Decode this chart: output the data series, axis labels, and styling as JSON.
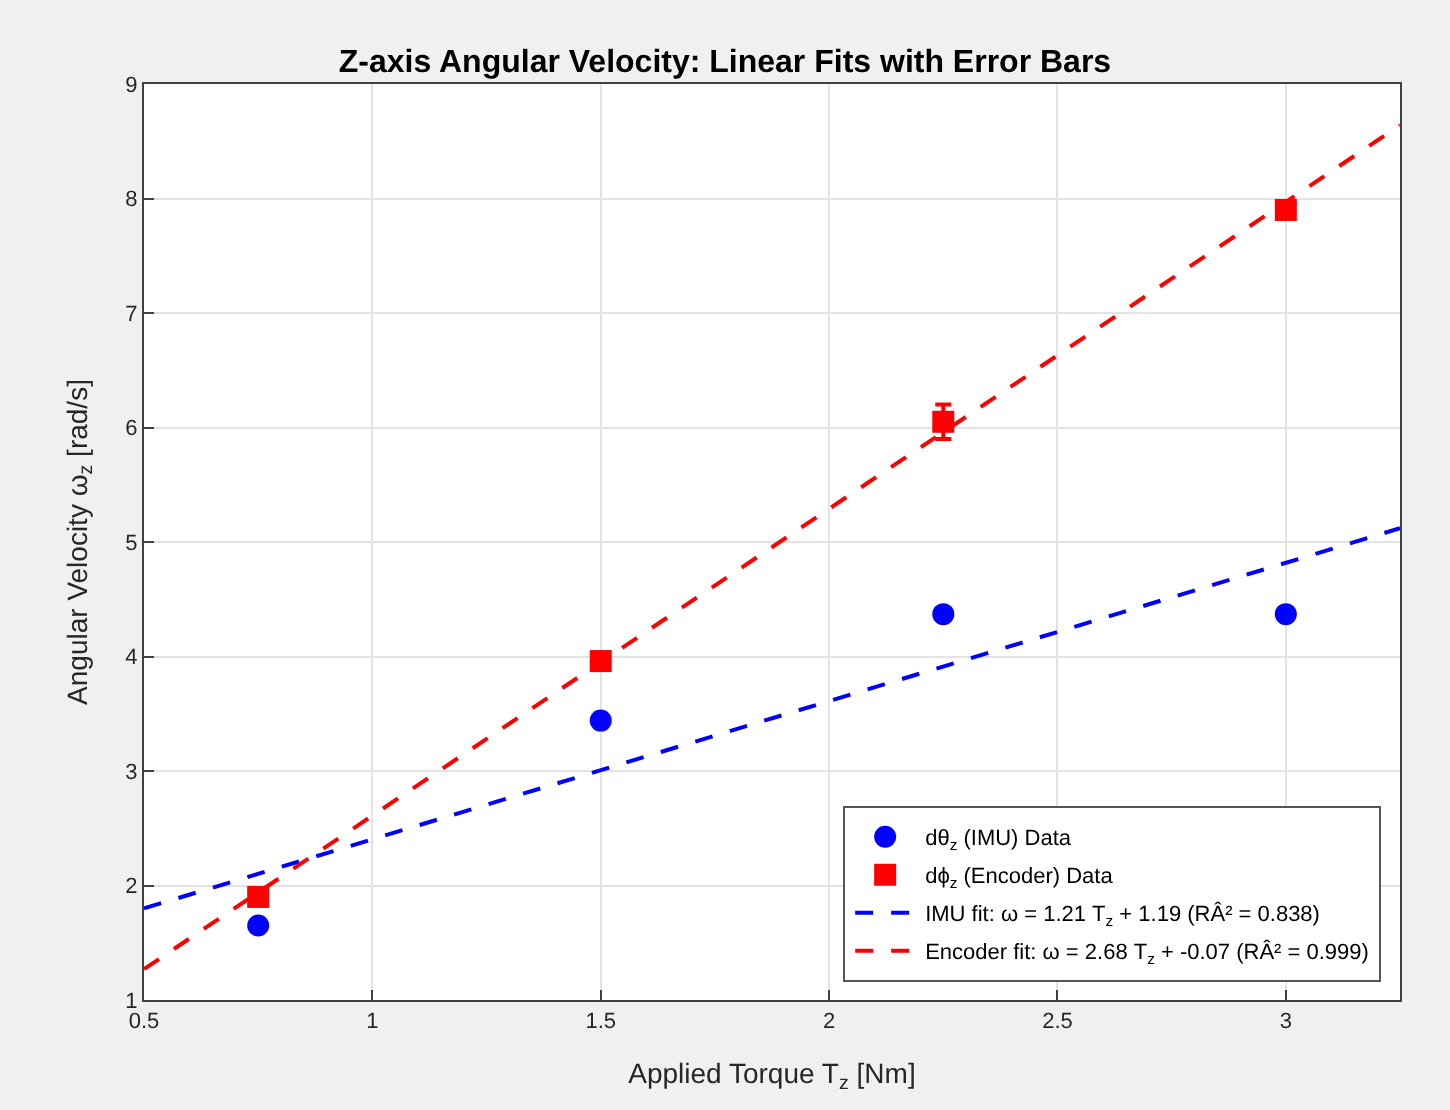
{
  "chart_data": {
    "type": "scatter",
    "title": "Z-axis Angular Velocity: Linear Fits with Error Bars",
    "xlabel": "Applied Torque T$_{z}$ [Nm]",
    "ylabel": "Angular Velocity ω$_{z}$ [rad/s]",
    "xlim": [
      0.5,
      3.25
    ],
    "xticks": [
      0.5,
      1,
      1.5,
      2,
      2.5,
      3
    ],
    "ylim": [
      1,
      9
    ],
    "yticks": [
      1,
      2,
      3,
      4,
      5,
      6,
      7,
      8,
      9
    ],
    "grid": true,
    "legend": "bottom right",
    "series": [
      {
        "name": "dθ$_{z}$ (IMU) Data",
        "color": "#0000ff",
        "marker": "circle",
        "x": [
          0.75,
          1.5,
          2.25,
          3
        ],
        "values": [
          1.65,
          3.44,
          4.37,
          4.37
        ]
      },
      {
        "name": "dϕ$_{z}$ (Encoder) Data",
        "color": "#ff0000",
        "marker": "square",
        "x": [
          0.75,
          1.5,
          2.25,
          3
        ],
        "values": [
          1.9,
          3.96,
          6.05,
          7.9
        ],
        "errors": [
          null,
          null,
          0.15,
          null
        ]
      },
      {
        "name": "IMU fit: ω = 1.21 T$_{z}$ + 1.19 (RÂ² = 0.838)",
        "color": "#0000ff",
        "type": "line",
        "line_style": "dashed",
        "x": [
          0.5,
          3.25
        ],
        "values": [
          1.8,
          5.12
        ]
      },
      {
        "name": "Encoder fit: ω = 2.68 T$_{z}$ + -0.07 (RÂ² = 0.999)",
        "color": "#ff0000",
        "type": "line",
        "line_style": "dashed",
        "x": [
          0.5,
          3.25
        ],
        "values": [
          1.27,
          8.64
        ]
      }
    ]
  }
}
